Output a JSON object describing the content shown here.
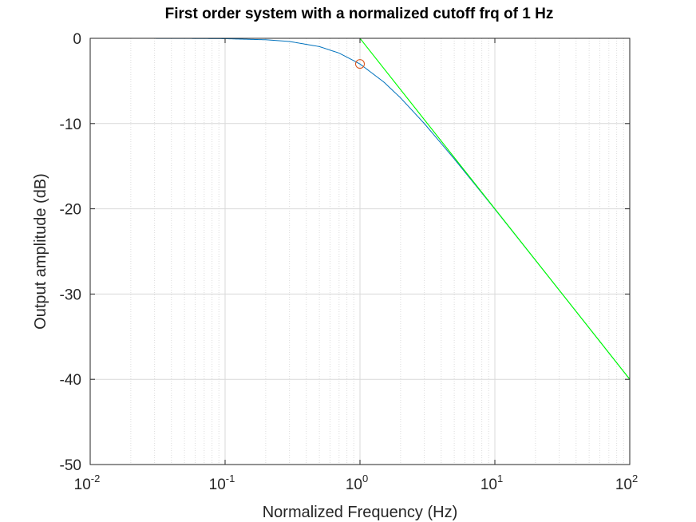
{
  "chart_data": {
    "type": "line",
    "title": "First order system with a normalized cutoff frq of 1 Hz",
    "xlabel": "Normalized Frequency (Hz)",
    "ylabel": "Output amplitude (dB)",
    "xscale": "log",
    "xlim": [
      0.01,
      100
    ],
    "ylim": [
      -50,
      0
    ],
    "x_ticks": [
      {
        "base": "10",
        "exp": "-2",
        "value": 0.01
      },
      {
        "base": "10",
        "exp": "-1",
        "value": 0.1
      },
      {
        "base": "10",
        "exp": "0",
        "value": 1
      },
      {
        "base": "10",
        "exp": "1",
        "value": 10
      },
      {
        "base": "10",
        "exp": "2",
        "value": 100
      }
    ],
    "y_ticks": [
      "0",
      "-10",
      "-20",
      "-30",
      "-40",
      "-50"
    ],
    "y_tick_values": [
      0,
      -10,
      -20,
      -30,
      -40,
      -50
    ],
    "grid": true,
    "minor_grid_x": true,
    "series": [
      {
        "color": "#0072bd",
        "style": "solid",
        "x": [
          0.01,
          0.02,
          0.05,
          0.1,
          0.2,
          0.3,
          0.5,
          0.7,
          1,
          1.5,
          2,
          3,
          5,
          7,
          10,
          20,
          50,
          100
        ],
        "y": [
          0.0,
          -0.002,
          -0.011,
          -0.043,
          -0.17,
          -0.37,
          -0.97,
          -1.73,
          -3.01,
          -5.12,
          -6.99,
          -10.0,
          -14.15,
          -17.0,
          -20.04,
          -26.03,
          -33.98,
          -40.0
        ]
      },
      {
        "color": "#00ff00",
        "style": "solid",
        "x": [
          0.01,
          1,
          100
        ],
        "y": [
          0,
          0,
          -40
        ]
      },
      {
        "color": "#00ff00",
        "style": "solid",
        "x": [
          1,
          100
        ],
        "y": [
          0,
          -40
        ]
      }
    ],
    "markers": [
      {
        "x": 1,
        "y": -3.01,
        "shape": "circle",
        "color": "#d95319"
      }
    ],
    "colors": {
      "axis": "#262626",
      "grid": "#d9d9d9",
      "minor_grid": "#dcdcdc"
    }
  }
}
